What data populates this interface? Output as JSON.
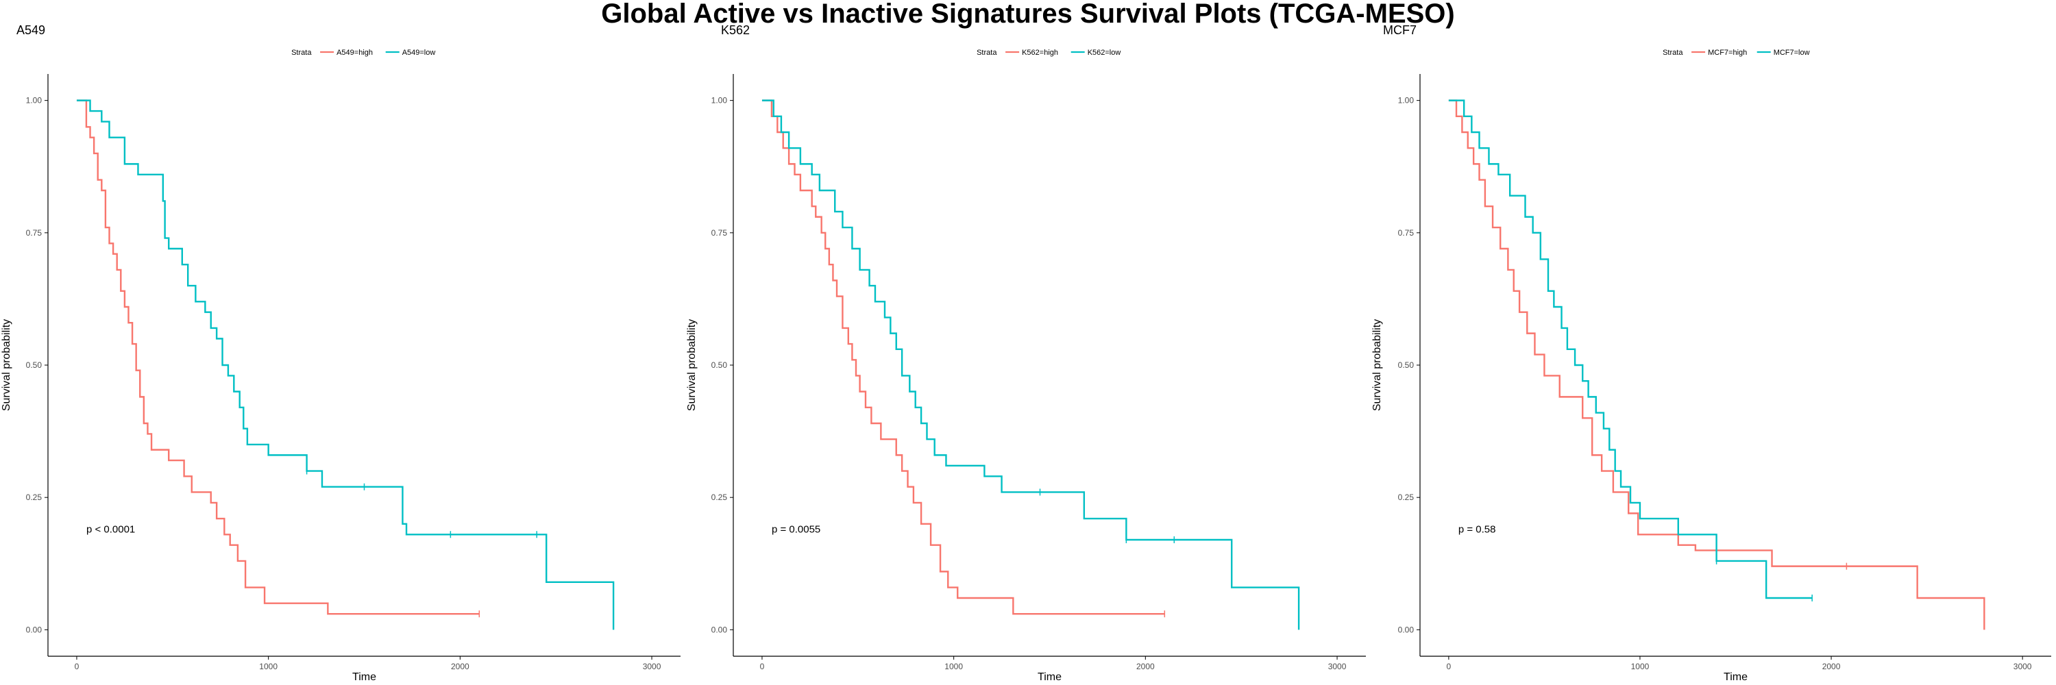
{
  "page": {
    "title": "Global Active vs Inactive Signatures Survival Plots (TCGA-MESO)"
  },
  "colors": {
    "high": "#F8766D",
    "low": "#00BFC4",
    "axis": "#000000",
    "tick_text": "#4D4D4D",
    "text": "#000000"
  },
  "chart_data": [
    {
      "type": "line",
      "subtitle": "A549",
      "xlabel": "Time",
      "ylabel": "Survival probability",
      "xlim": [
        -150,
        3150
      ],
      "ylim": [
        -0.05,
        1.05
      ],
      "x_ticks": [
        "0",
        "1000",
        "2000",
        "3000"
      ],
      "y_ticks": [
        "0.00",
        "0.25",
        "0.50",
        "0.75",
        "1.00"
      ],
      "legend_title": "Strata",
      "legend_position": "top",
      "grid": false,
      "pvalue": "p < 0.0001",
      "series": [
        {
          "name": "A549=high",
          "color_key": "high",
          "x": [
            0,
            50,
            70,
            90,
            110,
            130,
            150,
            170,
            190,
            210,
            230,
            250,
            270,
            290,
            310,
            330,
            350,
            370,
            390,
            420,
            480,
            560,
            600,
            700,
            730,
            770,
            800,
            840,
            880,
            980,
            1310,
            2100
          ],
          "y": [
            1.0,
            0.95,
            0.93,
            0.9,
            0.85,
            0.83,
            0.76,
            0.73,
            0.71,
            0.68,
            0.64,
            0.61,
            0.58,
            0.54,
            0.49,
            0.44,
            0.39,
            0.37,
            0.34,
            0.34,
            0.32,
            0.29,
            0.26,
            0.24,
            0.21,
            0.18,
            0.16,
            0.13,
            0.08,
            0.05,
            0.03,
            0.03
          ],
          "censor_x": [
            2100
          ]
        },
        {
          "name": "A549=low",
          "color_key": "low",
          "x": [
            0,
            70,
            130,
            170,
            250,
            320,
            450,
            460,
            480,
            500,
            550,
            580,
            620,
            670,
            700,
            730,
            760,
            790,
            820,
            850,
            870,
            890,
            950,
            1000,
            1150,
            1200,
            1280,
            1350,
            1500,
            1700,
            1720,
            1950,
            2400,
            2450,
            2800
          ],
          "y": [
            1.0,
            0.98,
            0.96,
            0.93,
            0.88,
            0.86,
            0.81,
            0.74,
            0.72,
            0.72,
            0.69,
            0.65,
            0.62,
            0.6,
            0.57,
            0.55,
            0.5,
            0.48,
            0.45,
            0.42,
            0.38,
            0.35,
            0.35,
            0.33,
            0.33,
            0.3,
            0.27,
            0.27,
            0.27,
            0.2,
            0.18,
            0.18,
            0.18,
            0.09,
            0.0
          ],
          "censor_x": [
            1200,
            1500,
            1950,
            2400
          ]
        }
      ]
    },
    {
      "type": "line",
      "subtitle": "K562",
      "xlabel": "Time",
      "ylabel": "Survival probability",
      "xlim": [
        -150,
        3150
      ],
      "ylim": [
        -0.05,
        1.05
      ],
      "x_ticks": [
        "0",
        "1000",
        "2000",
        "3000"
      ],
      "y_ticks": [
        "0.00",
        "0.25",
        "0.50",
        "0.75",
        "1.00"
      ],
      "legend_title": "Strata",
      "legend_position": "top",
      "grid": false,
      "pvalue": "p = 0.0055",
      "series": [
        {
          "name": "K562=high",
          "color_key": "high",
          "x": [
            0,
            50,
            80,
            110,
            140,
            170,
            200,
            260,
            280,
            310,
            330,
            350,
            370,
            390,
            420,
            450,
            470,
            490,
            510,
            540,
            570,
            620,
            700,
            730,
            760,
            790,
            830,
            880,
            930,
            970,
            1020,
            1310,
            2100
          ],
          "y": [
            1.0,
            0.97,
            0.94,
            0.91,
            0.88,
            0.86,
            0.83,
            0.8,
            0.78,
            0.75,
            0.72,
            0.69,
            0.66,
            0.63,
            0.57,
            0.54,
            0.51,
            0.48,
            0.45,
            0.42,
            0.39,
            0.36,
            0.33,
            0.3,
            0.27,
            0.24,
            0.2,
            0.16,
            0.11,
            0.08,
            0.06,
            0.03,
            0.03
          ],
          "censor_x": [
            2100
          ]
        },
        {
          "name": "K562=low",
          "color_key": "low",
          "x": [
            0,
            60,
            100,
            140,
            200,
            260,
            300,
            380,
            420,
            470,
            510,
            560,
            590,
            640,
            670,
            700,
            730,
            770,
            800,
            830,
            860,
            900,
            960,
            1010,
            1100,
            1160,
            1250,
            1450,
            1680,
            1900,
            2150,
            2450,
            2800
          ],
          "y": [
            1.0,
            0.97,
            0.94,
            0.91,
            0.88,
            0.86,
            0.83,
            0.79,
            0.76,
            0.72,
            0.68,
            0.65,
            0.62,
            0.59,
            0.56,
            0.53,
            0.48,
            0.45,
            0.42,
            0.39,
            0.36,
            0.33,
            0.31,
            0.31,
            0.31,
            0.29,
            0.26,
            0.26,
            0.21,
            0.17,
            0.17,
            0.08,
            0.0
          ],
          "censor_x": [
            1450,
            1900,
            2150
          ]
        }
      ]
    },
    {
      "type": "line",
      "subtitle": "MCF7",
      "xlabel": "Time",
      "ylabel": "Survival probability",
      "xlim": [
        -150,
        3150
      ],
      "ylim": [
        -0.05,
        1.05
      ],
      "x_ticks": [
        "0",
        "1000",
        "2000",
        "3000"
      ],
      "y_ticks": [
        "0.00",
        "0.25",
        "0.50",
        "0.75",
        "1.00"
      ],
      "legend_title": "Strata",
      "legend_position": "top",
      "grid": false,
      "pvalue": "p = 0.58",
      "series": [
        {
          "name": "MCF7=high",
          "color_key": "high",
          "x": [
            0,
            40,
            70,
            100,
            130,
            160,
            190,
            230,
            270,
            310,
            340,
            370,
            410,
            450,
            500,
            580,
            700,
            750,
            800,
            860,
            940,
            990,
            1200,
            1290,
            1690,
            2080,
            2450,
            2800
          ],
          "y": [
            1.0,
            0.97,
            0.94,
            0.91,
            0.88,
            0.85,
            0.8,
            0.76,
            0.72,
            0.68,
            0.64,
            0.6,
            0.56,
            0.52,
            0.48,
            0.44,
            0.4,
            0.33,
            0.3,
            0.26,
            0.22,
            0.18,
            0.16,
            0.15,
            0.12,
            0.12,
            0.06,
            0.0
          ],
          "censor_x": [
            2080
          ]
        },
        {
          "name": "MCF7=low",
          "color_key": "low",
          "x": [
            0,
            80,
            120,
            160,
            210,
            260,
            320,
            400,
            440,
            480,
            520,
            550,
            590,
            620,
            660,
            700,
            730,
            770,
            810,
            840,
            870,
            900,
            950,
            1000,
            1150,
            1200,
            1400,
            1660,
            1900
          ],
          "y": [
            1.0,
            0.97,
            0.94,
            0.91,
            0.88,
            0.86,
            0.82,
            0.78,
            0.75,
            0.7,
            0.64,
            0.61,
            0.57,
            0.53,
            0.5,
            0.47,
            0.44,
            0.41,
            0.38,
            0.34,
            0.3,
            0.27,
            0.24,
            0.21,
            0.21,
            0.18,
            0.13,
            0.06,
            0.06
          ],
          "censor_x": [
            1400,
            1900
          ]
        }
      ]
    }
  ]
}
